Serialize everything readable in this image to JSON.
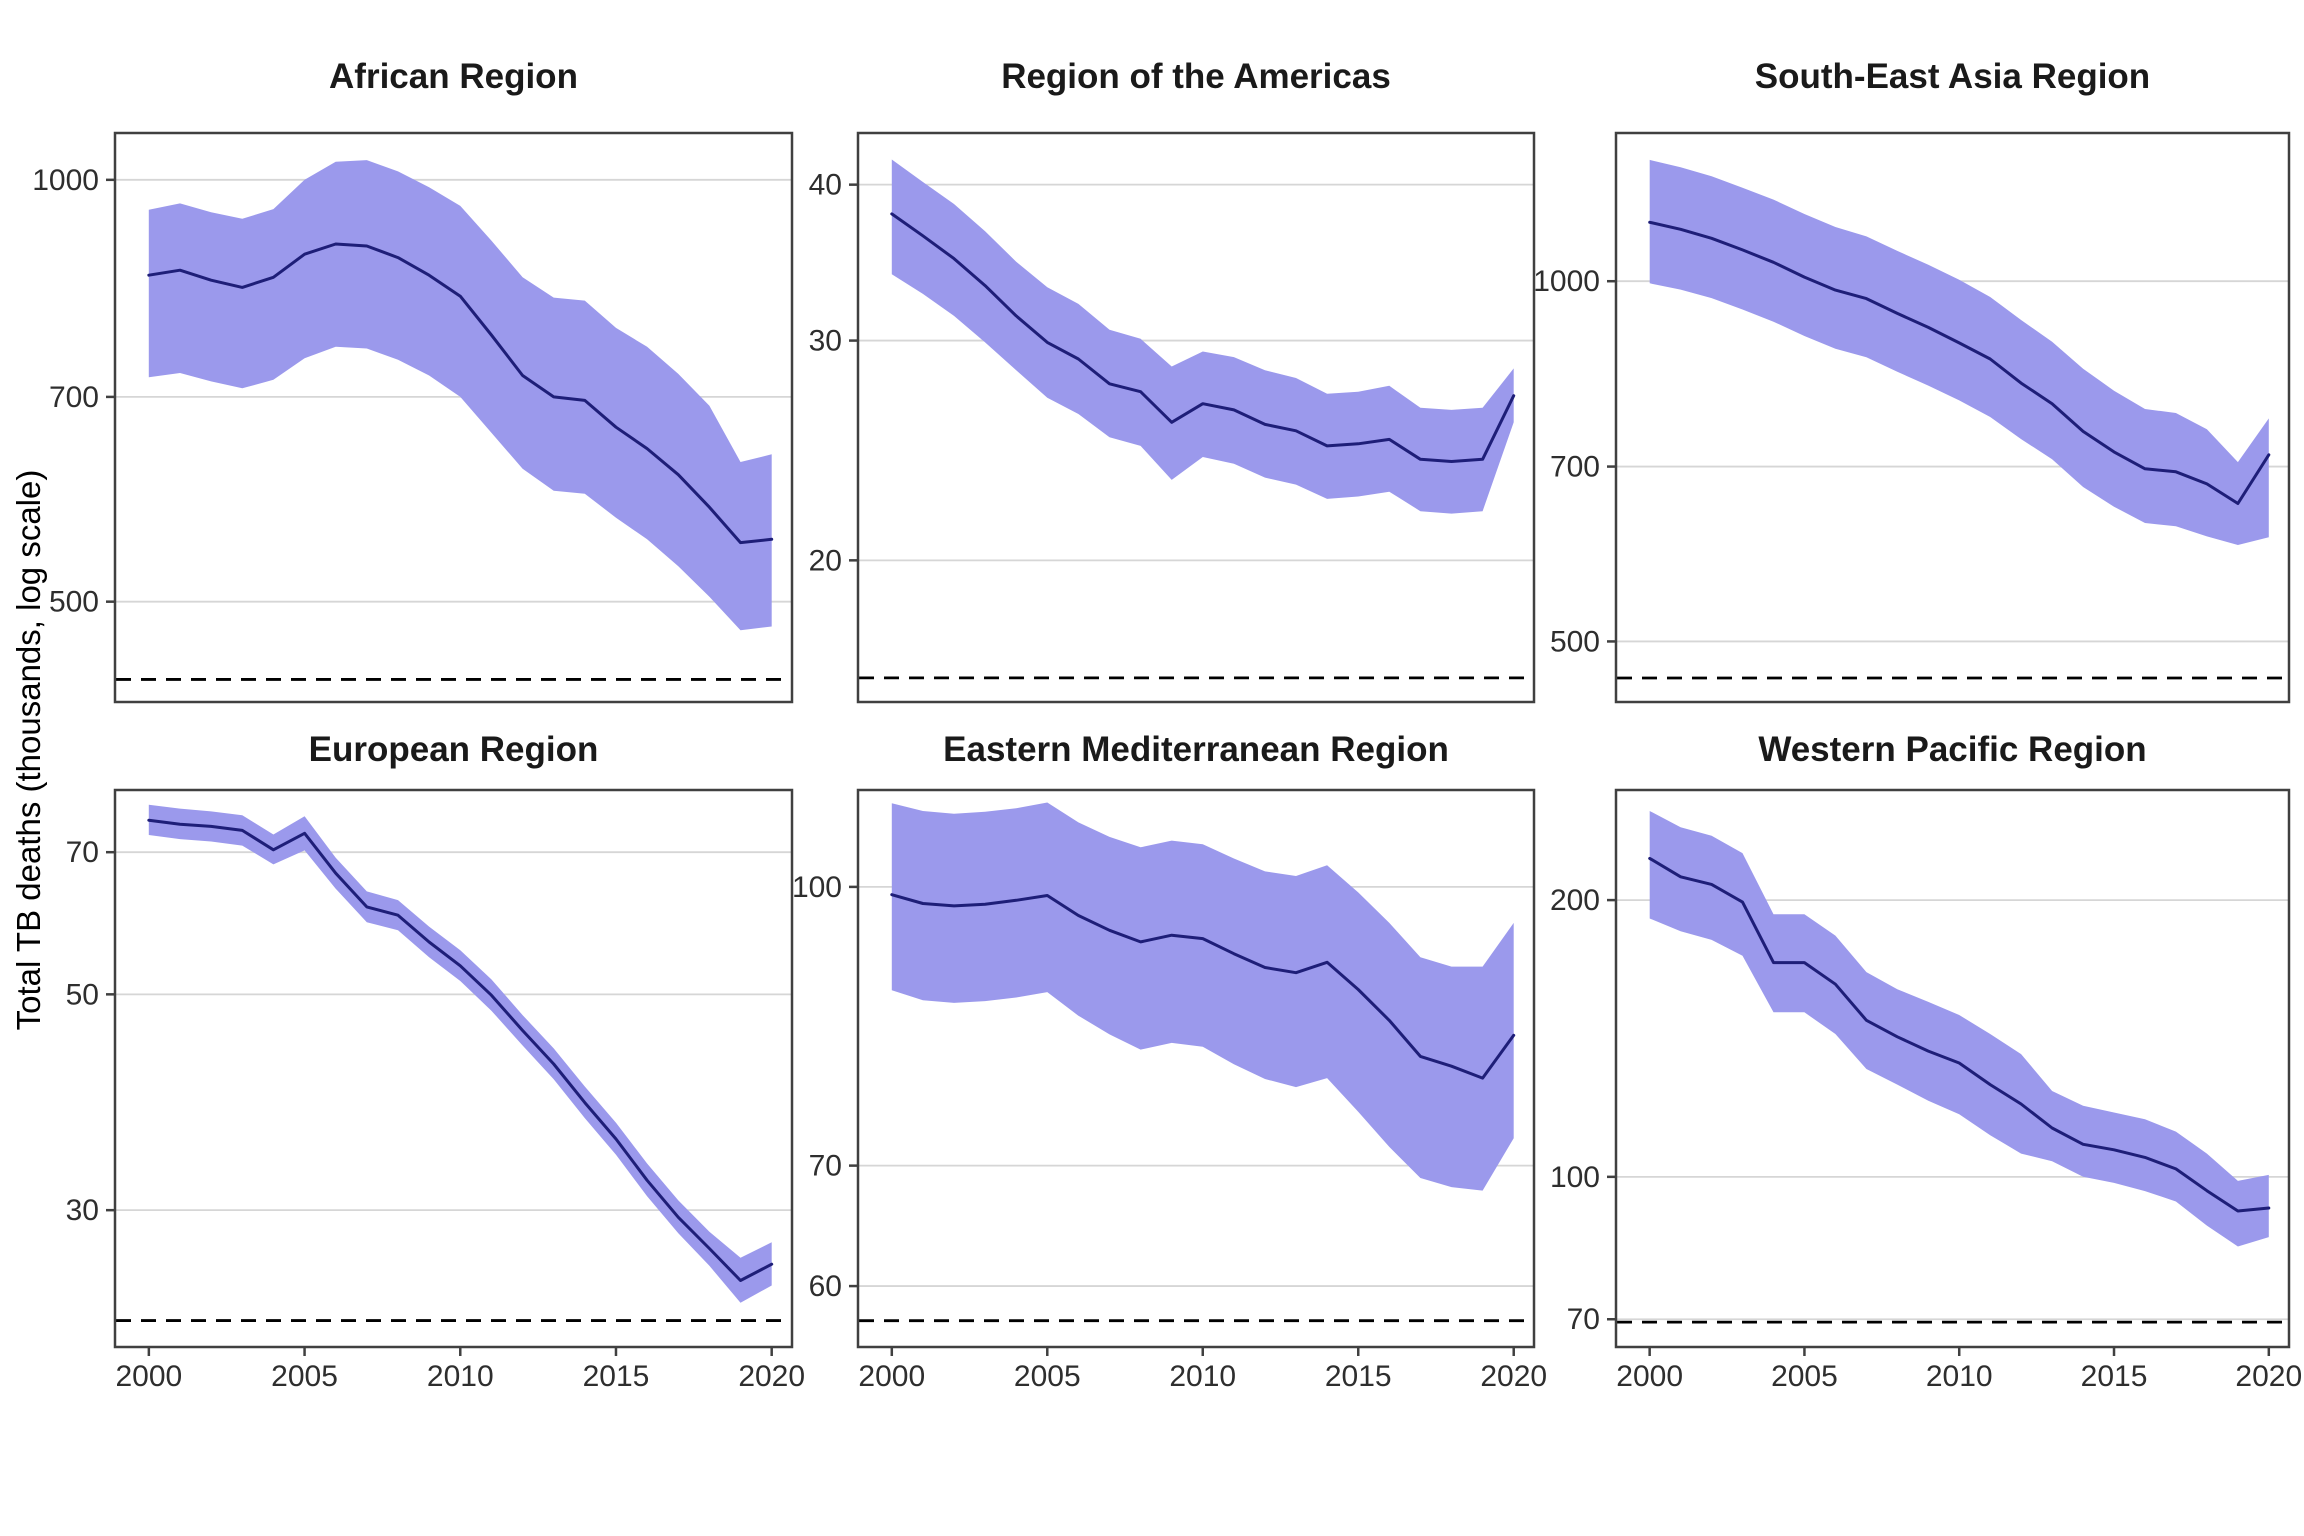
{
  "figure": {
    "y_axis_title": "Total TB deaths (thousands, log scale)",
    "x_ticks": [
      2000,
      2005,
      2010,
      2015,
      2020
    ],
    "grid": "horizontal-only",
    "legend": "none"
  },
  "colors": {
    "ribbon": "#9b99ec",
    "line": "#1e1e78",
    "gridline": "#d6d6d6",
    "panel_border": "#404040",
    "dashed_line": "#000000",
    "title_text": "#1a1a1a",
    "tick_text": "#2e2e2e"
  },
  "chart_data": [
    {
      "type": "area",
      "title": "African Region",
      "yscale": "log10",
      "x": [
        2000,
        2001,
        2002,
        2003,
        2004,
        2005,
        2006,
        2007,
        2008,
        2009,
        2010,
        2011,
        2012,
        2013,
        2014,
        2015,
        2016,
        2017,
        2018,
        2019,
        2020
      ],
      "series": [
        {
          "name": "estimate",
          "values": [
            855,
            862,
            848,
            838,
            852,
            885,
            900,
            897,
            880,
            855,
            826,
            775,
            725,
            700,
            696,
            666,
            643,
            616,
            584,
            551,
            554
          ]
        },
        {
          "name": "lower",
          "values": [
            723,
            728,
            718,
            710,
            720,
            746,
            760,
            758,
            744,
            725,
            700,
            660,
            622,
            600,
            597,
            574,
            554,
            530,
            504,
            477,
            480
          ]
        },
        {
          "name": "upper",
          "values": [
            952,
            962,
            948,
            938,
            953,
            1000,
            1030,
            1033,
            1014,
            988,
            958,
            905,
            852,
            824,
            820,
            784,
            760,
            727,
            690,
            629,
            637
          ]
        }
      ],
      "yticks": [
        1000,
        700,
        500
      ],
      "ylim": [
        424,
        1080
      ],
      "dashed_line": 440
    },
    {
      "type": "area",
      "title": "Region of the Americas",
      "yscale": "log10",
      "x": [
        2000,
        2001,
        2002,
        2003,
        2004,
        2005,
        2006,
        2007,
        2008,
        2009,
        2010,
        2011,
        2012,
        2013,
        2014,
        2015,
        2016,
        2017,
        2018,
        2019,
        2020
      ],
      "series": [
        {
          "name": "estimate",
          "values": [
            37.9,
            36.4,
            34.9,
            33.2,
            31.4,
            29.9,
            29.0,
            27.7,
            27.3,
            25.8,
            26.7,
            26.4,
            25.7,
            25.4,
            24.7,
            24.8,
            25.0,
            24.1,
            24.0,
            24.1,
            27.1
          ]
        },
        {
          "name": "lower",
          "values": [
            33.9,
            32.7,
            31.4,
            29.9,
            28.4,
            27.0,
            26.2,
            25.1,
            24.7,
            23.2,
            24.2,
            23.9,
            23.3,
            23.0,
            22.4,
            22.5,
            22.7,
            21.9,
            21.8,
            21.9,
            25.8
          ]
        },
        {
          "name": "upper",
          "values": [
            41.9,
            40.2,
            38.6,
            36.7,
            34.7,
            33.1,
            32.1,
            30.6,
            30.1,
            28.6,
            29.4,
            29.1,
            28.4,
            28.0,
            27.2,
            27.3,
            27.6,
            26.5,
            26.4,
            26.5,
            28.5
          ]
        }
      ],
      "yticks": [
        40,
        30,
        20
      ],
      "ylim": [
        15.4,
        44.0
      ],
      "dashed_line": 16.1
    },
    {
      "type": "area",
      "title": "South-East Asia Region",
      "yscale": "log10",
      "x": [
        2000,
        2001,
        2002,
        2003,
        2004,
        2005,
        2006,
        2007,
        2008,
        2009,
        2010,
        2011,
        2012,
        2013,
        2014,
        2015,
        2016,
        2017,
        2018,
        2019,
        2020
      ],
      "series": [
        {
          "name": "estimate",
          "values": [
            1120,
            1105,
            1086,
            1062,
            1037,
            1008,
            983,
            967,
            940,
            915,
            888,
            861,
            822,
            790,
            749,
            720,
            697,
            693,
            677,
            652,
            716
          ]
        },
        {
          "name": "lower",
          "values": [
            996,
            984,
            968,
            947,
            925,
            900,
            878,
            864,
            840,
            818,
            795,
            770,
            738,
            710,
            673,
            648,
            628,
            624,
            612,
            602,
            611
          ]
        },
        {
          "name": "upper",
          "values": [
            1263,
            1245,
            1224,
            1197,
            1170,
            1138,
            1110,
            1090,
            1060,
            1032,
            1003,
            970,
            928,
            890,
            845,
            810,
            782,
            776,
            752,
            706,
            768
          ]
        }
      ],
      "yticks": [
        1000,
        700,
        500
      ],
      "ylim": [
        445,
        1330
      ],
      "dashed_line": 466
    },
    {
      "type": "area",
      "title": "European Region",
      "yscale": "log10",
      "x": [
        2000,
        2001,
        2002,
        2003,
        2004,
        2005,
        2006,
        2007,
        2008,
        2009,
        2010,
        2011,
        2012,
        2013,
        2014,
        2015,
        2016,
        2017,
        2018,
        2019,
        2020
      ],
      "series": [
        {
          "name": "estimate",
          "values": [
            75.5,
            74.8,
            74.4,
            73.7,
            70.4,
            73.2,
            66.6,
            61.5,
            60.3,
            56.6,
            53.5,
            49.9,
            45.9,
            42.4,
            38.7,
            35.5,
            32.2,
            29.5,
            27.4,
            25.4,
            26.4
          ]
        },
        {
          "name": "lower",
          "values": [
            72.9,
            72.2,
            71.8,
            71.1,
            68.0,
            70.3,
            64.2,
            59.3,
            58.2,
            54.6,
            51.6,
            48.1,
            44.3,
            40.9,
            37.3,
            34.2,
            31.0,
            28.4,
            26.3,
            24.1,
            25.1
          ]
        },
        {
          "name": "upper",
          "values": [
            78.3,
            77.6,
            77.1,
            76.4,
            73.0,
            76.2,
            69.1,
            63.8,
            62.5,
            58.7,
            55.5,
            51.8,
            47.6,
            44.0,
            40.2,
            36.9,
            33.5,
            30.7,
            28.5,
            26.8,
            27.8
          ]
        }
      ],
      "yticks": [
        70,
        50,
        30
      ],
      "ylim": [
        21.7,
        81.1
      ],
      "dashed_line": 23.1
    },
    {
      "type": "area",
      "title": "Eastern Mediterranean Region",
      "yscale": "log10",
      "x": [
        2000,
        2001,
        2002,
        2003,
        2004,
        2005,
        2006,
        2007,
        2008,
        2009,
        2010,
        2011,
        2012,
        2013,
        2014,
        2015,
        2016,
        2017,
        2018,
        2019,
        2020
      ],
      "series": [
        {
          "name": "estimate",
          "values": [
            99,
            97.9,
            97.6,
            97.8,
            98.3,
            98.9,
            96.4,
            94.6,
            93.2,
            94.0,
            93.6,
            91.8,
            90.2,
            89.6,
            90.8,
            87.7,
            84.3,
            80.5,
            79.5,
            78.3,
            82.7
          ]
        },
        {
          "name": "lower",
          "values": [
            87.6,
            86.5,
            86.2,
            86.4,
            86.8,
            87.4,
            84.8,
            82.8,
            81.2,
            81.9,
            81.5,
            79.7,
            78.2,
            77.4,
            78.3,
            75.0,
            71.7,
            68.9,
            68.1,
            67.8,
            72.5
          ]
        },
        {
          "name": "upper",
          "values": [
            111.3,
            110.2,
            109.8,
            110.1,
            110.6,
            111.4,
            108.6,
            106.6,
            105.2,
            106.1,
            105.6,
            103.7,
            102.0,
            101.4,
            102.8,
            99.3,
            95.5,
            91.4,
            90.3,
            90.3,
            95.5
          ]
        }
      ],
      "yticks": [
        100,
        70,
        60
      ],
      "ylim": [
        55.5,
        113.2
      ],
      "dashed_line": 57.4
    },
    {
      "type": "area",
      "title": "Western Pacific Region",
      "yscale": "log10",
      "x": [
        2000,
        2001,
        2002,
        2003,
        2004,
        2005,
        2006,
        2007,
        2008,
        2009,
        2010,
        2011,
        2012,
        2013,
        2014,
        2015,
        2016,
        2017,
        2018,
        2019,
        2020
      ],
      "series": [
        {
          "name": "estimate",
          "values": [
            222,
            212,
            208,
            199,
            171,
            171,
            162,
            148,
            142,
            137,
            133,
            126,
            120,
            113,
            108.5,
            107,
            105,
            102,
            96.6,
            91.8,
            92.5
          ]
        },
        {
          "name": "lower",
          "values": [
            191,
            185,
            181,
            174,
            151,
            151,
            143,
            131,
            126,
            121,
            117,
            111,
            106,
            104,
            100,
            98.5,
            96.5,
            94,
            88.5,
            84,
            86
          ]
        },
        {
          "name": "upper",
          "values": [
            250,
            240,
            235,
            225,
            193,
            193,
            183,
            167,
            160,
            155,
            150,
            143,
            136,
            124,
            119.5,
            117.5,
            115.5,
            112,
            106,
            99,
            100.5
          ]
        }
      ],
      "yticks": [
        200,
        100,
        70
      ],
      "ylim": [
        65.3,
        263.5
      ],
      "dashed_line": 69.5
    }
  ]
}
